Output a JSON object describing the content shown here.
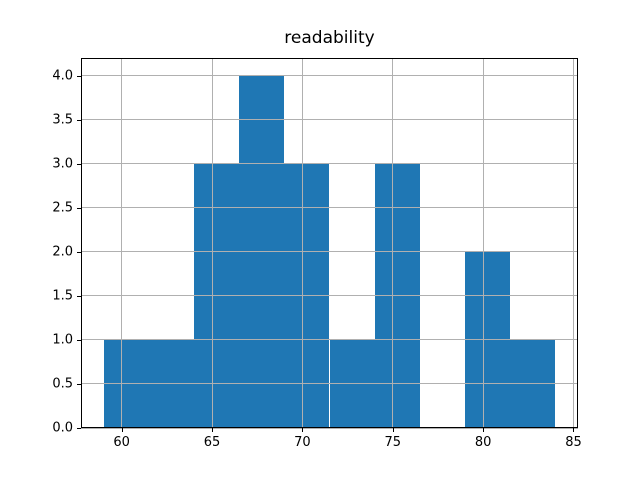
{
  "chart_data": {
    "type": "bar",
    "subtype": "histogram",
    "title": "readability",
    "xlabel": "",
    "ylabel": "",
    "bin_edges": [
      59,
      61.5,
      64,
      66.5,
      69,
      71.5,
      74,
      76.5,
      79,
      81.5,
      84
    ],
    "counts": [
      1,
      1,
      3,
      4,
      3,
      1,
      3,
      0,
      2,
      1
    ],
    "total_count": 19,
    "xlim": [
      57.75,
      85.25
    ],
    "ylim": [
      0,
      4.2
    ],
    "xticks": [
      60,
      65,
      70,
      75,
      80,
      85
    ],
    "xtick_labels": [
      "60",
      "65",
      "70",
      "75",
      "80",
      "85"
    ],
    "yticks": [
      0,
      0.5,
      1,
      1.5,
      2,
      2.5,
      3,
      3.5,
      4
    ],
    "ytick_labels": [
      "0.0",
      "0.5",
      "1.0",
      "1.5",
      "2.0",
      "2.5",
      "3.0",
      "3.5",
      "4.0"
    ],
    "grid": true,
    "grid_over_bars": true,
    "legend": null,
    "colors": {
      "bar": "#1f77b4",
      "grid": "#b0b0b0",
      "frame": "#000000",
      "text": "#000000",
      "background": "#ffffff"
    }
  }
}
